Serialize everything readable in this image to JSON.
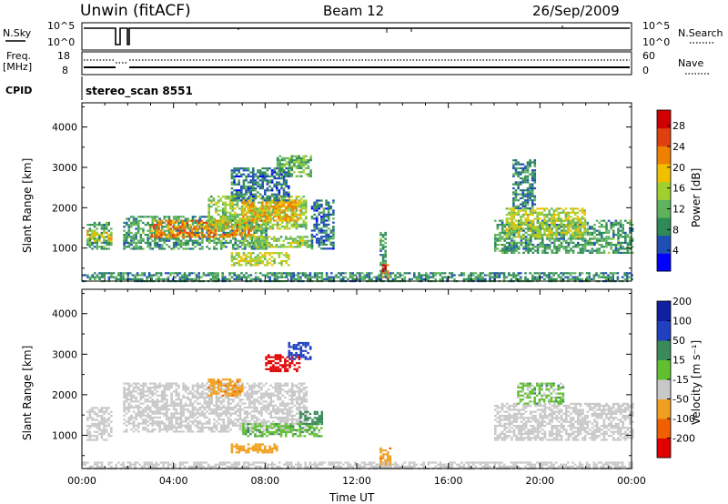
{
  "header": {
    "title": "Unwin (fitACF)",
    "beam": "Beam 12",
    "date": "26/Sep/2009"
  },
  "nsky_panel": {
    "label": "N.Sky",
    "tick_top": "10^5",
    "tick_bottom": "10^0",
    "right_label": "N.Search",
    "right_tick_top": "10^5",
    "right_tick_bottom": "10^0"
  },
  "freq_panel": {
    "label": "Freq.",
    "unit": "[MHz]",
    "tick_top": "18",
    "tick_bottom": "8",
    "right_label": "Nave",
    "right_tick_top": "60",
    "right_tick_bottom": "0"
  },
  "cpid": {
    "label": "CPID",
    "value": "stereo_scan 8551"
  },
  "colors": {
    "background_scatter": "#c8c8c8",
    "power_scale": [
      "#0000ff",
      "#1f4fb5",
      "#2e8b57",
      "#5fb35f",
      "#a0d030",
      "#f0c000",
      "#f08000",
      "#e04010",
      "#d00000"
    ],
    "velocity_scale": [
      "#e00000",
      "#f06000",
      "#f0a020",
      "#c8c8c8",
      "#60c030",
      "#3a8a5a",
      "#2040c0",
      "#1020a0"
    ]
  },
  "chart_data": [
    {
      "type": "heatmap",
      "name": "power-panel",
      "ylabel": "Slant Range [km]",
      "ylim": [
        180,
        4600
      ],
      "yticks": [
        "1000",
        "2000",
        "3000",
        "4000"
      ],
      "ytick_values": [
        1000,
        2000,
        3000,
        4000
      ],
      "xlim": [
        0,
        24
      ],
      "colorbar": {
        "label": "Power [dB]",
        "range": [
          0,
          31
        ],
        "tick_labels": [
          "4",
          "8",
          "12",
          "16",
          "20",
          "24",
          "28"
        ],
        "tick_values": [
          4,
          8,
          12,
          16,
          20,
          24,
          28
        ]
      },
      "regions": [
        {
          "t0": 0.2,
          "t1": 1.3,
          "r0": 1000,
          "r1": 1650,
          "power": 10
        },
        {
          "t0": 0.2,
          "t1": 1.3,
          "r0": 1200,
          "r1": 1450,
          "power": 18
        },
        {
          "t0": 1.8,
          "t1": 8.0,
          "r0": 1000,
          "r1": 1800,
          "power": 10
        },
        {
          "t0": 3.0,
          "t1": 7.5,
          "r0": 1300,
          "r1": 1700,
          "power": 22
        },
        {
          "t0": 5.5,
          "t1": 9.8,
          "r0": 1500,
          "r1": 2300,
          "power": 14
        },
        {
          "t0": 7.0,
          "t1": 9.5,
          "r0": 1700,
          "r1": 2200,
          "power": 20
        },
        {
          "t0": 8.5,
          "t1": 10.0,
          "r0": 2800,
          "r1": 3300,
          "power": 12
        },
        {
          "t0": 6.5,
          "t1": 9.0,
          "r0": 2200,
          "r1": 3000,
          "power": 7
        },
        {
          "t0": 7.0,
          "t1": 10.0,
          "r0": 1050,
          "r1": 1300,
          "power": 14
        },
        {
          "t0": 6.5,
          "t1": 9.0,
          "r0": 600,
          "r1": 900,
          "power": 16
        },
        {
          "t0": 10.0,
          "t1": 11.0,
          "r0": 1000,
          "r1": 2200,
          "power": 7
        },
        {
          "t0": 13.0,
          "t1": 13.3,
          "r0": 300,
          "r1": 1400,
          "power": 10
        },
        {
          "t0": 13.1,
          "t1": 13.4,
          "r0": 250,
          "r1": 600,
          "power": 26
        },
        {
          "t0": 18.0,
          "t1": 24.0,
          "r0": 900,
          "r1": 1700,
          "power": 10
        },
        {
          "t0": 18.5,
          "t1": 22.0,
          "r0": 1300,
          "r1": 2000,
          "power": 16
        },
        {
          "t0": 18.8,
          "t1": 19.8,
          "r0": 2000,
          "r1": 3200,
          "power": 8
        },
        {
          "t0": 0.0,
          "t1": 24.0,
          "r0": 190,
          "r1": 400,
          "power": 9
        }
      ]
    },
    {
      "type": "heatmap",
      "name": "velocity-panel",
      "ylabel": "Slant Range [km]",
      "ylim": [
        180,
        4600
      ],
      "yticks": [
        "1000",
        "2000",
        "3000",
        "4000"
      ],
      "ytick_values": [
        1000,
        2000,
        3000,
        4000
      ],
      "xlabel": "Time UT",
      "xlim": [
        0,
        24
      ],
      "xticks": [
        "00:00",
        "04:00",
        "08:00",
        "12:00",
        "16:00",
        "20:00",
        "00:00"
      ],
      "xtick_values": [
        0,
        4,
        8,
        12,
        16,
        20,
        24
      ],
      "colorbar": {
        "label": "Velocity [m s⁻¹]",
        "range": [
          -250,
          250
        ],
        "tick_labels": [
          "-200",
          "-100",
          "-50",
          "-15",
          "15",
          "50",
          "100",
          "200"
        ]
      },
      "regions": [
        {
          "t0": 0.2,
          "t1": 1.3,
          "r0": 900,
          "r1": 1700,
          "vel": 0
        },
        {
          "t0": 1.8,
          "t1": 9.8,
          "r0": 1100,
          "r1": 2300,
          "vel": 0
        },
        {
          "t0": 8.0,
          "t1": 9.5,
          "r0": 2600,
          "r1": 3000,
          "vel": -200
        },
        {
          "t0": 9.0,
          "t1": 10.0,
          "r0": 2900,
          "r1": 3300,
          "vel": 150
        },
        {
          "t0": 5.5,
          "t1": 7.0,
          "r0": 2000,
          "r1": 2400,
          "vel": -60
        },
        {
          "t0": 7.0,
          "t1": 10.5,
          "r0": 1000,
          "r1": 1300,
          "vel": 30
        },
        {
          "t0": 9.5,
          "t1": 10.5,
          "r0": 1300,
          "r1": 1600,
          "vel": 70
        },
        {
          "t0": 6.5,
          "t1": 8.5,
          "r0": 600,
          "r1": 800,
          "vel": -50
        },
        {
          "t0": 13.0,
          "t1": 13.5,
          "r0": 250,
          "r1": 700,
          "vel": -60
        },
        {
          "t0": 18.0,
          "t1": 24.0,
          "r0": 900,
          "r1": 1800,
          "vel": 0
        },
        {
          "t0": 19.0,
          "t1": 21.0,
          "r0": 1800,
          "r1": 2300,
          "vel": 25
        },
        {
          "t0": 0.0,
          "t1": 24.0,
          "r0": 190,
          "r1": 350,
          "vel": 0
        }
      ]
    }
  ]
}
